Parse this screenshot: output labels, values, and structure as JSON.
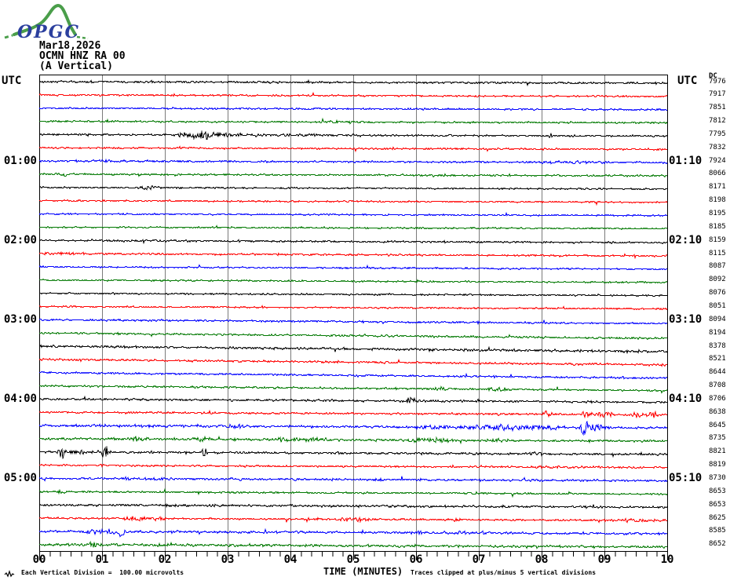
{
  "logo": {
    "text": "OPGC"
  },
  "header": {
    "date": "Mar18,2026",
    "station": "OCMN HNZ RA 00",
    "component": "(A Vertical)"
  },
  "axis_left": {
    "top_label": "UTC",
    "hour_labels": [
      {
        "row": 6,
        "label": "01:00"
      },
      {
        "row": 12,
        "label": "02:00"
      },
      {
        "row": 18,
        "label": "03:00"
      },
      {
        "row": 24,
        "label": "04:00"
      },
      {
        "row": 30,
        "label": "05:00"
      }
    ]
  },
  "axis_right": {
    "top_label": "UTC",
    "dc_label": "DC",
    "hour_labels": [
      {
        "row": 6,
        "label": "01:10"
      },
      {
        "row": 12,
        "label": "02:10"
      },
      {
        "row": 18,
        "label": "03:10"
      },
      {
        "row": 24,
        "label": "04:10"
      },
      {
        "row": 30,
        "label": "05:10"
      }
    ]
  },
  "footer": {
    "scale_note": "Each Vertical Division =  100.00 microvolts",
    "xlabel": "TIME (MINUTES)",
    "clip_note": "Traces clipped at plus/minus 5 vertical divisions"
  },
  "colors": {
    "black": "#000000",
    "red": "#ff0000",
    "blue": "#0000ff",
    "green": "#007800",
    "grid": "#7a7a7a",
    "frame": "#000000",
    "logo_green": "#4a9e4a",
    "logo_blue": "#2b3f9e"
  },
  "chart_data": {
    "type": "line",
    "subtype": "helicorder",
    "title": "OCMN HNZ RA 00 (A Vertical) Mar18,2026",
    "xlabel": "TIME (MINUTES)",
    "x_range": [
      0,
      10
    ],
    "x_ticks": [
      "00",
      "01",
      "02",
      "03",
      "04",
      "05",
      "06",
      "07",
      "08",
      "09",
      "10"
    ],
    "minor_ticks_per_minute": 6,
    "minutes_per_row": 10,
    "rows_per_hour": 6,
    "vertical_division_microvolts": 100.0,
    "clip_divisions": 5,
    "rows": [
      {
        "utc": "00:00",
        "color": "black",
        "dc": 7976,
        "amp": 1.1,
        "slope": 2,
        "events": []
      },
      {
        "utc": "00:10",
        "color": "red",
        "dc": 7917,
        "amp": 0.9,
        "slope": 2,
        "events": []
      },
      {
        "utc": "00:20",
        "color": "blue",
        "dc": 7851,
        "amp": 0.9,
        "slope": 2,
        "events": []
      },
      {
        "utc": "00:30",
        "color": "green",
        "dc": 7812,
        "amp": 0.9,
        "slope": 2,
        "events": [
          {
            "m": 4.8,
            "w": 0.3,
            "a": 1.3
          }
        ]
      },
      {
        "utc": "00:40",
        "color": "black",
        "dc": 7795,
        "amp": 0.9,
        "slope": 2,
        "events": [
          {
            "m": 2.55,
            "w": 0.22,
            "a": 5
          },
          {
            "m": 2.95,
            "w": 0.5,
            "a": 2
          },
          {
            "m": 4.3,
            "w": 0.6,
            "a": 1.2
          }
        ]
      },
      {
        "utc": "00:50",
        "color": "red",
        "dc": 7832,
        "amp": 0.9,
        "slope": 2,
        "events": []
      },
      {
        "utc": "01:00",
        "color": "blue",
        "dc": 7924,
        "amp": 1.0,
        "slope": 2,
        "events": [
          {
            "m": 1.2,
            "w": 0.7,
            "a": 1.2
          },
          {
            "m": 8.6,
            "w": 0.5,
            "a": 1.4
          }
        ]
      },
      {
        "utc": "01:10",
        "color": "green",
        "dc": 8066,
        "amp": 0.9,
        "slope": 2,
        "events": [
          {
            "m": 0.4,
            "w": 0.15,
            "a": 2
          }
        ]
      },
      {
        "utc": "01:20",
        "color": "black",
        "dc": 8171,
        "amp": 0.8,
        "slope": 2,
        "events": [
          {
            "m": 1.75,
            "w": 0.12,
            "a": 2.5
          }
        ]
      },
      {
        "utc": "01:30",
        "color": "red",
        "dc": 8198,
        "amp": 0.8,
        "slope": 2,
        "events": []
      },
      {
        "utc": "01:40",
        "color": "blue",
        "dc": 8195,
        "amp": 0.8,
        "slope": 2,
        "events": []
      },
      {
        "utc": "01:50",
        "color": "green",
        "dc": 8185,
        "amp": 0.8,
        "slope": 2,
        "events": []
      },
      {
        "utc": "02:00",
        "color": "black",
        "dc": 8159,
        "amp": 1.0,
        "slope": 3,
        "events": []
      },
      {
        "utc": "02:10",
        "color": "red",
        "dc": 8115,
        "amp": 0.9,
        "slope": 3,
        "events": [
          {
            "m": 0.3,
            "w": 0.25,
            "a": 1.6
          }
        ]
      },
      {
        "utc": "02:20",
        "color": "blue",
        "dc": 8087,
        "amp": 0.8,
        "slope": 3,
        "events": []
      },
      {
        "utc": "02:30",
        "color": "green",
        "dc": 8092,
        "amp": 0.8,
        "slope": 3,
        "events": []
      },
      {
        "utc": "02:40",
        "color": "black",
        "dc": 8076,
        "amp": 0.8,
        "slope": 3,
        "events": []
      },
      {
        "utc": "02:50",
        "color": "red",
        "dc": 8051,
        "amp": 0.8,
        "slope": 3,
        "events": []
      },
      {
        "utc": "03:00",
        "color": "blue",
        "dc": 8094,
        "amp": 1.0,
        "slope": 5,
        "events": []
      },
      {
        "utc": "03:10",
        "color": "green",
        "dc": 8194,
        "amp": 1.0,
        "slope": 7,
        "events": []
      },
      {
        "utc": "03:20",
        "color": "black",
        "dc": 8378,
        "amp": 1.3,
        "slope": 7,
        "events": []
      },
      {
        "utc": "03:30",
        "color": "red",
        "dc": 8521,
        "amp": 1.1,
        "slope": 7,
        "events": []
      },
      {
        "utc": "03:40",
        "color": "blue",
        "dc": 8644,
        "amp": 1.0,
        "slope": 7,
        "events": []
      },
      {
        "utc": "03:50",
        "color": "green",
        "dc": 8708,
        "amp": 1.0,
        "slope": 6,
        "events": [
          {
            "m": 6.4,
            "w": 0.08,
            "a": 2.5
          },
          {
            "m": 7.3,
            "w": 0.1,
            "a": 3
          }
        ]
      },
      {
        "utc": "04:00",
        "color": "black",
        "dc": 8706,
        "amp": 1.1,
        "slope": 4,
        "events": [
          {
            "m": 5.9,
            "w": 0.1,
            "a": 4.5
          }
        ]
      },
      {
        "utc": "04:10",
        "color": "red",
        "dc": 8638,
        "amp": 1.0,
        "slope": 3,
        "events": [
          {
            "m": 8.1,
            "w": 0.05,
            "a": 5
          },
          {
            "m": 8.7,
            "w": 0.06,
            "a": 4
          },
          {
            "m": 9.0,
            "w": 0.12,
            "a": 3
          },
          {
            "m": 9.5,
            "w": 0.07,
            "a": 4.5
          },
          {
            "m": 9.78,
            "w": 0.07,
            "a": 5
          }
        ]
      },
      {
        "utc": "04:20",
        "color": "blue",
        "dc": 8645,
        "amp": 1.3,
        "slope": 3,
        "events": [
          {
            "m": 3.1,
            "w": 0.15,
            "a": 2.2
          },
          {
            "m": 6.3,
            "w": 0.3,
            "a": 2
          },
          {
            "m": 7.3,
            "w": 0.45,
            "a": 3
          },
          {
            "m": 7.95,
            "w": 0.25,
            "a": 3
          },
          {
            "m": 8.68,
            "w": 0.05,
            "a": 9
          },
          {
            "m": 8.85,
            "w": 0.15,
            "a": 4
          }
        ]
      },
      {
        "utc": "04:30",
        "color": "green",
        "dc": 8735,
        "amp": 1.2,
        "slope": 3,
        "events": [
          {
            "m": 1.55,
            "w": 0.12,
            "a": 3.5
          },
          {
            "m": 2.6,
            "w": 0.1,
            "a": 4
          },
          {
            "m": 4.1,
            "w": 0.45,
            "a": 2.2
          },
          {
            "m": 6.2,
            "w": 0.22,
            "a": 3
          },
          {
            "m": 7.35,
            "w": 0.08,
            "a": 2.5
          }
        ]
      },
      {
        "utc": "04:40",
        "color": "black",
        "dc": 8821,
        "amp": 1.1,
        "slope": 3,
        "events": [
          {
            "m": 0.35,
            "w": 0.035,
            "a": 11
          },
          {
            "m": 0.6,
            "w": 0.35,
            "a": 2
          },
          {
            "m": 1.05,
            "w": 0.035,
            "a": 9
          },
          {
            "m": 2.62,
            "w": 0.04,
            "a": 7
          },
          {
            "m": 7.9,
            "w": 0.12,
            "a": 2
          }
        ]
      },
      {
        "utc": "04:50",
        "color": "red",
        "dc": 8819,
        "amp": 0.9,
        "slope": 3,
        "events": [
          {
            "m": 8.2,
            "w": 0.5,
            "a": 1.5
          }
        ]
      },
      {
        "utc": "05:00",
        "color": "blue",
        "dc": 8730,
        "amp": 1.1,
        "slope": 3,
        "events": [
          {
            "m": 2.0,
            "w": 1.0,
            "a": 1.0
          }
        ]
      },
      {
        "utc": "05:10",
        "color": "green",
        "dc": 8653,
        "amp": 0.9,
        "slope": 3,
        "events": [
          {
            "m": 0.35,
            "w": 0.08,
            "a": 2.2
          },
          {
            "m": 7.0,
            "w": 0.12,
            "a": 2
          }
        ]
      },
      {
        "utc": "05:20",
        "color": "black",
        "dc": 8653,
        "amp": 1.2,
        "slope": 3,
        "events": []
      },
      {
        "utc": "05:30",
        "color": "red",
        "dc": 8625,
        "amp": 1.0,
        "slope": 3,
        "events": [
          {
            "m": 1.55,
            "w": 0.15,
            "a": 3
          },
          {
            "m": 1.9,
            "w": 0.06,
            "a": 3.5
          },
          {
            "m": 5.0,
            "w": 0.35,
            "a": 2
          },
          {
            "m": 6.6,
            "w": 0.08,
            "a": 2.5
          },
          {
            "m": 9.4,
            "w": 0.25,
            "a": 2
          }
        ]
      },
      {
        "utc": "05:40",
        "color": "blue",
        "dc": 8585,
        "amp": 1.2,
        "slope": 3,
        "events": [
          {
            "m": 0.8,
            "w": 0.2,
            "a": 2.5
          },
          {
            "m": 1.15,
            "w": 0.12,
            "a": 3
          },
          {
            "m": 1.3,
            "w": 0.05,
            "a": 7
          },
          {
            "m": 6.5,
            "w": 0.7,
            "a": 1.4
          }
        ]
      },
      {
        "utc": "05:50",
        "color": "green",
        "dc": 8652,
        "amp": 1.2,
        "slope": 3,
        "events": [
          {
            "m": 0.85,
            "w": 0.1,
            "a": 3.5
          },
          {
            "m": 2.0,
            "w": 1.2,
            "a": 1.2
          },
          {
            "m": 5.7,
            "w": 0.08,
            "a": 2
          },
          {
            "m": 7.9,
            "w": 0.15,
            "a": 1.6
          }
        ]
      }
    ]
  }
}
